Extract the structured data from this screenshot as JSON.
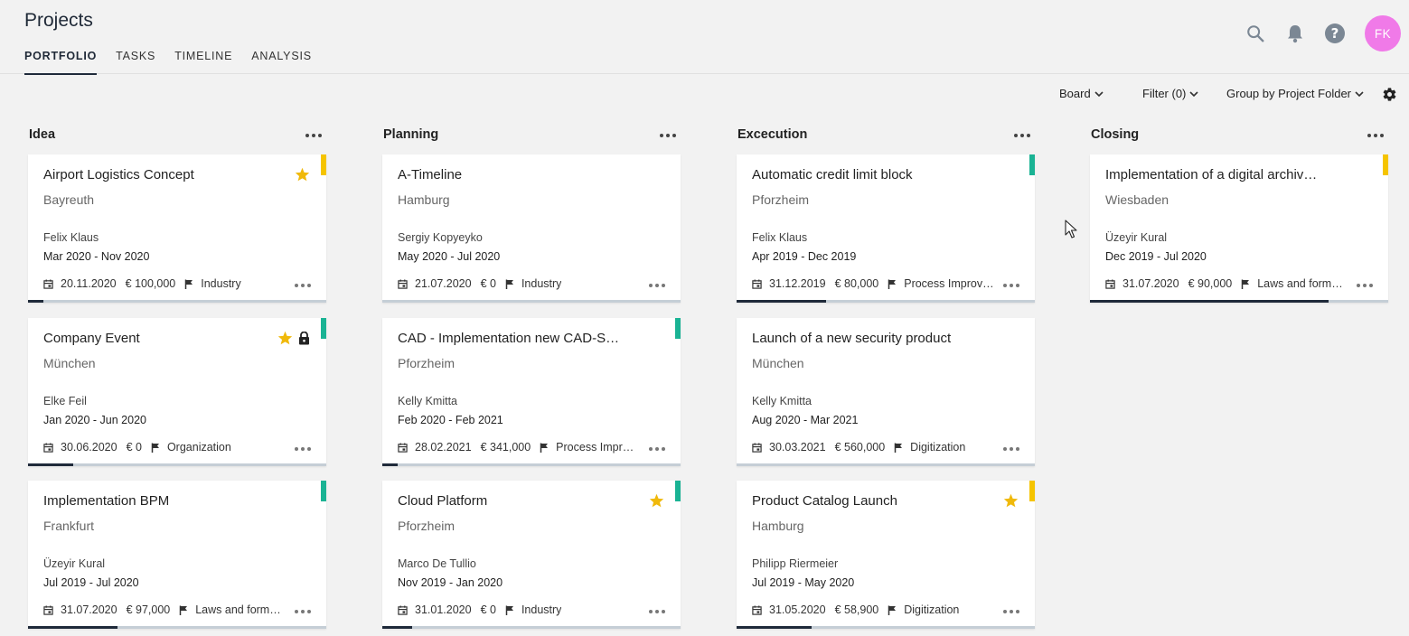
{
  "header": {
    "title": "Projects",
    "tabs": [
      {
        "label": "PORTFOLIO",
        "active": true
      },
      {
        "label": "TASKS",
        "active": false
      },
      {
        "label": "TIMELINE",
        "active": false
      },
      {
        "label": "ANALYSIS",
        "active": false
      }
    ],
    "avatar_initials": "FK",
    "icons": [
      "search-icon",
      "bell-icon",
      "help-icon"
    ]
  },
  "toolbar": {
    "view_label": "Board",
    "filter_label": "Filter (0)",
    "group_label": "Group by Project Folder"
  },
  "colors": {
    "yellow": "#f5c400",
    "green": "#1ab394",
    "progress_fill": "#1f2a3a",
    "progress_track": "#c5ced6",
    "star": "#f0b90b",
    "avatar": "#f07ae8"
  },
  "columns": [
    {
      "title": "Idea",
      "cards": [
        {
          "title": "Airport Logistics Concept",
          "city": "Bayreuth",
          "person": "Felix Klaus",
          "period": "Mar 2020 - Nov 2020",
          "date": "20.11.2020",
          "budget": "€ 100,000",
          "tag": "Industry",
          "flag": "yellow",
          "star": true,
          "lock": false,
          "progress": 0.05
        },
        {
          "title": "Company Event",
          "city": "München",
          "person": "Elke Feil",
          "period": "Jan 2020 - Jun 2020",
          "date": "30.06.2020",
          "budget": "€ 0",
          "tag": "Organization",
          "flag": "green",
          "star": true,
          "lock": true,
          "progress": 0.15
        },
        {
          "title": "Implementation BPM",
          "city": "Frankfurt",
          "person": "Üzeyir Kural",
          "period": "Jul 2019 - Jul 2020",
          "date": "31.07.2020",
          "budget": "€ 97,000",
          "tag": "Laws and form…",
          "flag": "green",
          "star": false,
          "lock": false,
          "progress": 0.3
        }
      ]
    },
    {
      "title": "Planning",
      "cards": [
        {
          "title": "A-Timeline",
          "city": "Hamburg",
          "person": "Sergiy Kopyeyko",
          "period": "May 2020 - Jul 2020",
          "date": "21.07.2020",
          "budget": "€ 0",
          "tag": "Industry",
          "flag": "",
          "star": false,
          "lock": false,
          "progress": 0
        },
        {
          "title": "CAD - Implementation new CAD-S…",
          "city": "Pforzheim",
          "person": "Kelly Kmitta",
          "period": "Feb 2020 - Feb 2021",
          "date": "28.02.2021",
          "budget": "€ 341,000",
          "tag": "Process Impr…",
          "flag": "green",
          "star": false,
          "lock": false,
          "progress": 0.05
        },
        {
          "title": "Cloud Platform",
          "city": "Pforzheim",
          "person": "Marco De Tullio",
          "period": "Nov 2019 - Jan 2020",
          "date": "31.01.2020",
          "budget": "€ 0",
          "tag": "Industry",
          "flag": "green",
          "star": true,
          "lock": false,
          "progress": 0.1
        }
      ]
    },
    {
      "title": "Excecution",
      "cards": [
        {
          "title": "Automatic credit limit block",
          "city": "Pforzheim",
          "person": "Felix Klaus",
          "period": "Apr 2019 - Dec 2019",
          "date": "31.12.2019",
          "budget": "€ 80,000",
          "tag": "Process Improv…",
          "flag": "green",
          "star": false,
          "lock": false,
          "progress": 0.3
        },
        {
          "title": "Launch of a new security product",
          "city": "München",
          "person": "Kelly Kmitta",
          "period": "Aug 2020 - Mar 2021",
          "date": "30.03.2021",
          "budget": "€ 560,000",
          "tag": "Digitization",
          "flag": "",
          "star": false,
          "lock": false,
          "progress": 0
        },
        {
          "title": "Product Catalog Launch",
          "city": "Hamburg",
          "person": "Philipp Riermeier",
          "period": "Jul 2019 - May 2020",
          "date": "31.05.2020",
          "budget": "€ 58,900",
          "tag": "Digitization",
          "flag": "yellow",
          "star": true,
          "lock": false,
          "progress": 0.25
        }
      ]
    },
    {
      "title": "Closing",
      "cards": [
        {
          "title": "Implementation of a digital archiv…",
          "city": "Wiesbaden",
          "person": "Üzeyir Kural",
          "period": "Dec 2019 - Jul 2020",
          "date": "31.07.2020",
          "budget": "€ 90,000",
          "tag": "Laws and form…",
          "flag": "yellow",
          "star": false,
          "lock": false,
          "progress": 0.8
        }
      ]
    }
  ]
}
